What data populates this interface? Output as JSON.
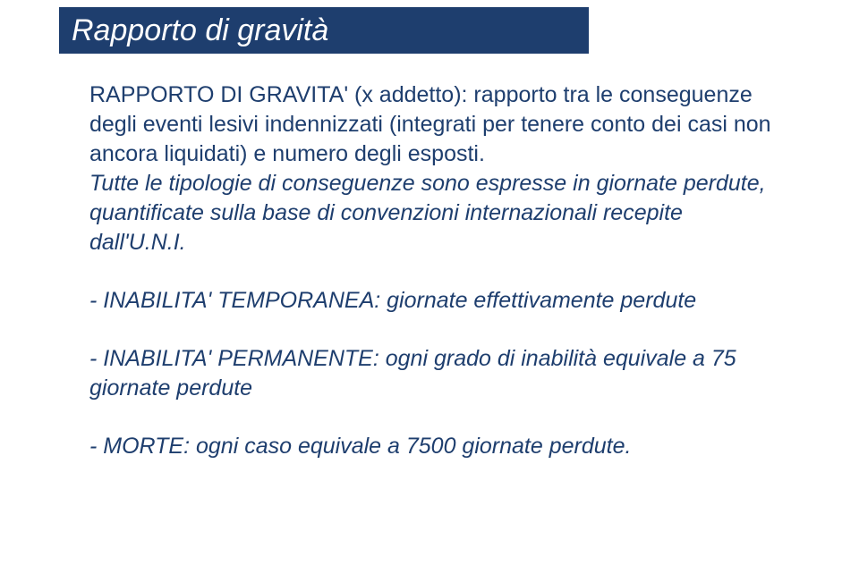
{
  "colors": {
    "title_bar_bg": "#1e3e6e",
    "title_text": "#ffffff",
    "body_text": "#1e3e6e",
    "page_bg": "#ffffff"
  },
  "typography": {
    "title_fontsize": 34,
    "title_style": "italic",
    "body_fontsize": 25,
    "font_family": "Verdana"
  },
  "title": "Rapporto di gravità",
  "paragraphs": {
    "p1_a": "RAPPORTO DI GRAVITA' (x addetto): rapporto tra le conseguenze degli eventi lesivi indennizzati (integrati per tenere conto dei casi non ancora liquidati) e numero degli esposti.",
    "p1_b": "Tutte le tipologie di conseguenze sono espresse in giornate perdute, quantificate sulla base di convenzioni internazionali recepite dall'U.N.I.",
    "p2": "- INABILITA' TEMPORANEA: giornate effettivamente perdute",
    "p3": "- INABILITA' PERMANENTE: ogni grado di inabilità equivale a 75 giornate perdute",
    "p4": "- MORTE: ogni caso equivale a 7500 giornate perdute."
  }
}
